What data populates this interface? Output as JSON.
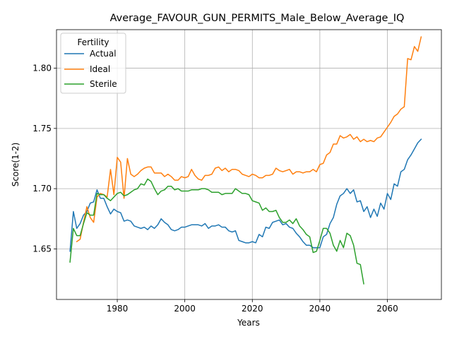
{
  "chart_data": {
    "type": "line",
    "title": "Average_FAVOUR_GUN_PERMITS_Male_Below_Average_IQ",
    "xlabel": "Years",
    "ylabel": "Score(1-2)",
    "xlim": [
      1962,
      2076
    ],
    "ylim": [
      1.608,
      1.832
    ],
    "xticks": [
      1980,
      2000,
      2020,
      2040,
      2060
    ],
    "yticks": [
      1.65,
      1.7,
      1.75,
      1.8
    ],
    "xtick_labels": [
      "1980",
      "2000",
      "2020",
      "2040",
      "2060"
    ],
    "ytick_labels": [
      "1.65",
      "1.70",
      "1.75",
      "1.80"
    ],
    "grid": true,
    "legend": {
      "title": "Fertility",
      "placement": "top-left"
    },
    "series": [
      {
        "name": "Actual",
        "color": "#1f77b4",
        "points": [
          [
            1966,
            1.648
          ],
          [
            1967,
            1.681
          ],
          [
            1968,
            1.667
          ],
          [
            1969,
            1.671
          ],
          [
            1970,
            1.678
          ],
          [
            1971,
            1.681
          ],
          [
            1972,
            1.688
          ],
          [
            1973,
            1.689
          ],
          [
            1974,
            1.699
          ],
          [
            1975,
            1.692
          ],
          [
            1976,
            1.692
          ],
          [
            1977,
            1.685
          ],
          [
            1978,
            1.679
          ],
          [
            1979,
            1.683
          ],
          [
            1980,
            1.681
          ],
          [
            1981,
            1.68
          ],
          [
            1982,
            1.673
          ],
          [
            1983,
            1.674
          ],
          [
            1984,
            1.673
          ],
          [
            1985,
            1.669
          ],
          [
            1986,
            1.668
          ],
          [
            1987,
            1.667
          ],
          [
            1988,
            1.668
          ],
          [
            1989,
            1.666
          ],
          [
            1990,
            1.669
          ],
          [
            1991,
            1.667
          ],
          [
            1992,
            1.67
          ],
          [
            1993,
            1.675
          ],
          [
            1994,
            1.672
          ],
          [
            1995,
            1.67
          ],
          [
            1996,
            1.666
          ],
          [
            1997,
            1.665
          ],
          [
            1998,
            1.666
          ],
          [
            1999,
            1.668
          ],
          [
            2000,
            1.668
          ],
          [
            2001,
            1.669
          ],
          [
            2002,
            1.67
          ],
          [
            2003,
            1.67
          ],
          [
            2004,
            1.67
          ],
          [
            2005,
            1.669
          ],
          [
            2006,
            1.671
          ],
          [
            2007,
            1.667
          ],
          [
            2008,
            1.669
          ],
          [
            2009,
            1.669
          ],
          [
            2010,
            1.67
          ],
          [
            2011,
            1.668
          ],
          [
            2012,
            1.668
          ],
          [
            2013,
            1.665
          ],
          [
            2014,
            1.664
          ],
          [
            2015,
            1.665
          ],
          [
            2016,
            1.657
          ],
          [
            2017,
            1.656
          ],
          [
            2018,
            1.655
          ],
          [
            2019,
            1.655
          ],
          [
            2020,
            1.656
          ],
          [
            2021,
            1.655
          ],
          [
            2022,
            1.662
          ],
          [
            2023,
            1.66
          ],
          [
            2024,
            1.668
          ],
          [
            2025,
            1.667
          ],
          [
            2026,
            1.672
          ],
          [
            2027,
            1.673
          ],
          [
            2028,
            1.674
          ],
          [
            2029,
            1.67
          ],
          [
            2030,
            1.671
          ],
          [
            2031,
            1.668
          ],
          [
            2032,
            1.667
          ],
          [
            2033,
            1.663
          ],
          [
            2034,
            1.66
          ],
          [
            2035,
            1.656
          ],
          [
            2036,
            1.653
          ],
          [
            2037,
            1.653
          ],
          [
            2038,
            1.651
          ],
          [
            2039,
            1.651
          ],
          [
            2040,
            1.651
          ],
          [
            2041,
            1.66
          ],
          [
            2042,
            1.662
          ],
          [
            2043,
            1.671
          ],
          [
            2044,
            1.676
          ],
          [
            2045,
            1.687
          ],
          [
            2046,
            1.694
          ],
          [
            2047,
            1.696
          ],
          [
            2048,
            1.7
          ],
          [
            2049,
            1.696
          ],
          [
            2050,
            1.699
          ],
          [
            2051,
            1.689
          ],
          [
            2052,
            1.69
          ],
          [
            2053,
            1.681
          ],
          [
            2054,
            1.685
          ],
          [
            2055,
            1.676
          ],
          [
            2056,
            1.683
          ],
          [
            2057,
            1.677
          ],
          [
            2058,
            1.688
          ],
          [
            2059,
            1.683
          ],
          [
            2060,
            1.696
          ],
          [
            2061,
            1.691
          ],
          [
            2062,
            1.704
          ],
          [
            2063,
            1.702
          ],
          [
            2064,
            1.714
          ],
          [
            2065,
            1.716
          ],
          [
            2066,
            1.724
          ],
          [
            2067,
            1.728
          ],
          [
            2068,
            1.733
          ],
          [
            2069,
            1.738
          ],
          [
            2070,
            1.741
          ]
        ]
      },
      {
        "name": "Ideal",
        "color": "#ff7f0e",
        "points": [
          [
            1968,
            1.656
          ],
          [
            1969,
            1.658
          ],
          [
            1970,
            1.672
          ],
          [
            1971,
            1.685
          ],
          [
            1972,
            1.676
          ],
          [
            1973,
            1.672
          ],
          [
            1974,
            1.693
          ],
          [
            1975,
            1.696
          ],
          [
            1976,
            1.695
          ],
          [
            1977,
            1.693
          ],
          [
            1978,
            1.716
          ],
          [
            1979,
            1.695
          ],
          [
            1980,
            1.726
          ],
          [
            1981,
            1.722
          ],
          [
            1982,
            1.692
          ],
          [
            1983,
            1.725
          ],
          [
            1984,
            1.712
          ],
          [
            1985,
            1.71
          ],
          [
            1986,
            1.712
          ],
          [
            1987,
            1.715
          ],
          [
            1988,
            1.717
          ],
          [
            1989,
            1.718
          ],
          [
            1990,
            1.718
          ],
          [
            1991,
            1.713
          ],
          [
            1992,
            1.713
          ],
          [
            1993,
            1.713
          ],
          [
            1994,
            1.71
          ],
          [
            1995,
            1.712
          ],
          [
            1996,
            1.71
          ],
          [
            1997,
            1.707
          ],
          [
            1998,
            1.707
          ],
          [
            1999,
            1.71
          ],
          [
            2000,
            1.709
          ],
          [
            2001,
            1.71
          ],
          [
            2002,
            1.716
          ],
          [
            2003,
            1.711
          ],
          [
            2004,
            1.708
          ],
          [
            2005,
            1.707
          ],
          [
            2006,
            1.711
          ],
          [
            2007,
            1.711
          ],
          [
            2008,
            1.712
          ],
          [
            2009,
            1.717
          ],
          [
            2010,
            1.718
          ],
          [
            2011,
            1.715
          ],
          [
            2012,
            1.717
          ],
          [
            2013,
            1.714
          ],
          [
            2014,
            1.716
          ],
          [
            2015,
            1.716
          ],
          [
            2016,
            1.715
          ],
          [
            2017,
            1.712
          ],
          [
            2018,
            1.711
          ],
          [
            2019,
            1.71
          ],
          [
            2020,
            1.712
          ],
          [
            2021,
            1.711
          ],
          [
            2022,
            1.709
          ],
          [
            2023,
            1.709
          ],
          [
            2024,
            1.711
          ],
          [
            2025,
            1.711
          ],
          [
            2026,
            1.712
          ],
          [
            2027,
            1.717
          ],
          [
            2028,
            1.715
          ],
          [
            2029,
            1.714
          ],
          [
            2030,
            1.715
          ],
          [
            2031,
            1.716
          ],
          [
            2032,
            1.712
          ],
          [
            2033,
            1.714
          ],
          [
            2034,
            1.714
          ],
          [
            2035,
            1.713
          ],
          [
            2036,
            1.714
          ],
          [
            2037,
            1.714
          ],
          [
            2038,
            1.716
          ],
          [
            2039,
            1.714
          ],
          [
            2040,
            1.72
          ],
          [
            2041,
            1.721
          ],
          [
            2042,
            1.728
          ],
          [
            2043,
            1.73
          ],
          [
            2044,
            1.737
          ],
          [
            2045,
            1.737
          ],
          [
            2046,
            1.744
          ],
          [
            2047,
            1.742
          ],
          [
            2048,
            1.743
          ],
          [
            2049,
            1.745
          ],
          [
            2050,
            1.741
          ],
          [
            2051,
            1.743
          ],
          [
            2052,
            1.739
          ],
          [
            2053,
            1.741
          ],
          [
            2054,
            1.739
          ],
          [
            2055,
            1.74
          ],
          [
            2056,
            1.739
          ],
          [
            2057,
            1.742
          ],
          [
            2058,
            1.743
          ],
          [
            2059,
            1.747
          ],
          [
            2060,
            1.751
          ],
          [
            2061,
            1.755
          ],
          [
            2062,
            1.76
          ],
          [
            2063,
            1.762
          ],
          [
            2064,
            1.766
          ],
          [
            2065,
            1.768
          ],
          [
            2066,
            1.808
          ],
          [
            2067,
            1.807
          ],
          [
            2068,
            1.818
          ],
          [
            2069,
            1.814
          ],
          [
            2070,
            1.826
          ]
        ]
      },
      {
        "name": "Sterile",
        "color": "#2ca02c",
        "points": [
          [
            1966,
            1.639
          ],
          [
            1967,
            1.667
          ],
          [
            1968,
            1.661
          ],
          [
            1969,
            1.661
          ],
          [
            1970,
            1.671
          ],
          [
            1971,
            1.68
          ],
          [
            1972,
            1.678
          ],
          [
            1973,
            1.678
          ],
          [
            1974,
            1.696
          ],
          [
            1975,
            1.695
          ],
          [
            1976,
            1.695
          ],
          [
            1977,
            1.692
          ],
          [
            1978,
            1.69
          ],
          [
            1979,
            1.693
          ],
          [
            1980,
            1.696
          ],
          [
            1981,
            1.697
          ],
          [
            1982,
            1.694
          ],
          [
            1983,
            1.695
          ],
          [
            1984,
            1.697
          ],
          [
            1985,
            1.699
          ],
          [
            1986,
            1.7
          ],
          [
            1987,
            1.704
          ],
          [
            1988,
            1.703
          ],
          [
            1989,
            1.708
          ],
          [
            1990,
            1.706
          ],
          [
            1991,
            1.7
          ],
          [
            1992,
            1.695
          ],
          [
            1993,
            1.698
          ],
          [
            1994,
            1.699
          ],
          [
            1995,
            1.702
          ],
          [
            1996,
            1.702
          ],
          [
            1997,
            1.699
          ],
          [
            1998,
            1.7
          ],
          [
            1999,
            1.698
          ],
          [
            2000,
            1.698
          ],
          [
            2001,
            1.698
          ],
          [
            2002,
            1.699
          ],
          [
            2003,
            1.699
          ],
          [
            2004,
            1.699
          ],
          [
            2005,
            1.7
          ],
          [
            2006,
            1.7
          ],
          [
            2007,
            1.699
          ],
          [
            2008,
            1.697
          ],
          [
            2009,
            1.697
          ],
          [
            2010,
            1.697
          ],
          [
            2011,
            1.695
          ],
          [
            2012,
            1.696
          ],
          [
            2013,
            1.696
          ],
          [
            2014,
            1.696
          ],
          [
            2015,
            1.7
          ],
          [
            2016,
            1.698
          ],
          [
            2017,
            1.696
          ],
          [
            2018,
            1.696
          ],
          [
            2019,
            1.695
          ],
          [
            2020,
            1.69
          ],
          [
            2021,
            1.689
          ],
          [
            2022,
            1.688
          ],
          [
            2023,
            1.682
          ],
          [
            2024,
            1.684
          ],
          [
            2025,
            1.681
          ],
          [
            2026,
            1.681
          ],
          [
            2027,
            1.682
          ],
          [
            2028,
            1.676
          ],
          [
            2029,
            1.672
          ],
          [
            2030,
            1.672
          ],
          [
            2031,
            1.674
          ],
          [
            2032,
            1.671
          ],
          [
            2033,
            1.675
          ],
          [
            2034,
            1.669
          ],
          [
            2035,
            1.666
          ],
          [
            2036,
            1.662
          ],
          [
            2037,
            1.66
          ],
          [
            2038,
            1.647
          ],
          [
            2039,
            1.648
          ],
          [
            2040,
            1.657
          ],
          [
            2041,
            1.667
          ],
          [
            2042,
            1.667
          ],
          [
            2043,
            1.663
          ],
          [
            2044,
            1.653
          ],
          [
            2045,
            1.648
          ],
          [
            2046,
            1.657
          ],
          [
            2047,
            1.651
          ],
          [
            2048,
            1.663
          ],
          [
            2049,
            1.661
          ],
          [
            2050,
            1.653
          ],
          [
            2051,
            1.638
          ],
          [
            2052,
            1.637
          ],
          [
            2053,
            1.621
          ]
        ]
      }
    ]
  }
}
